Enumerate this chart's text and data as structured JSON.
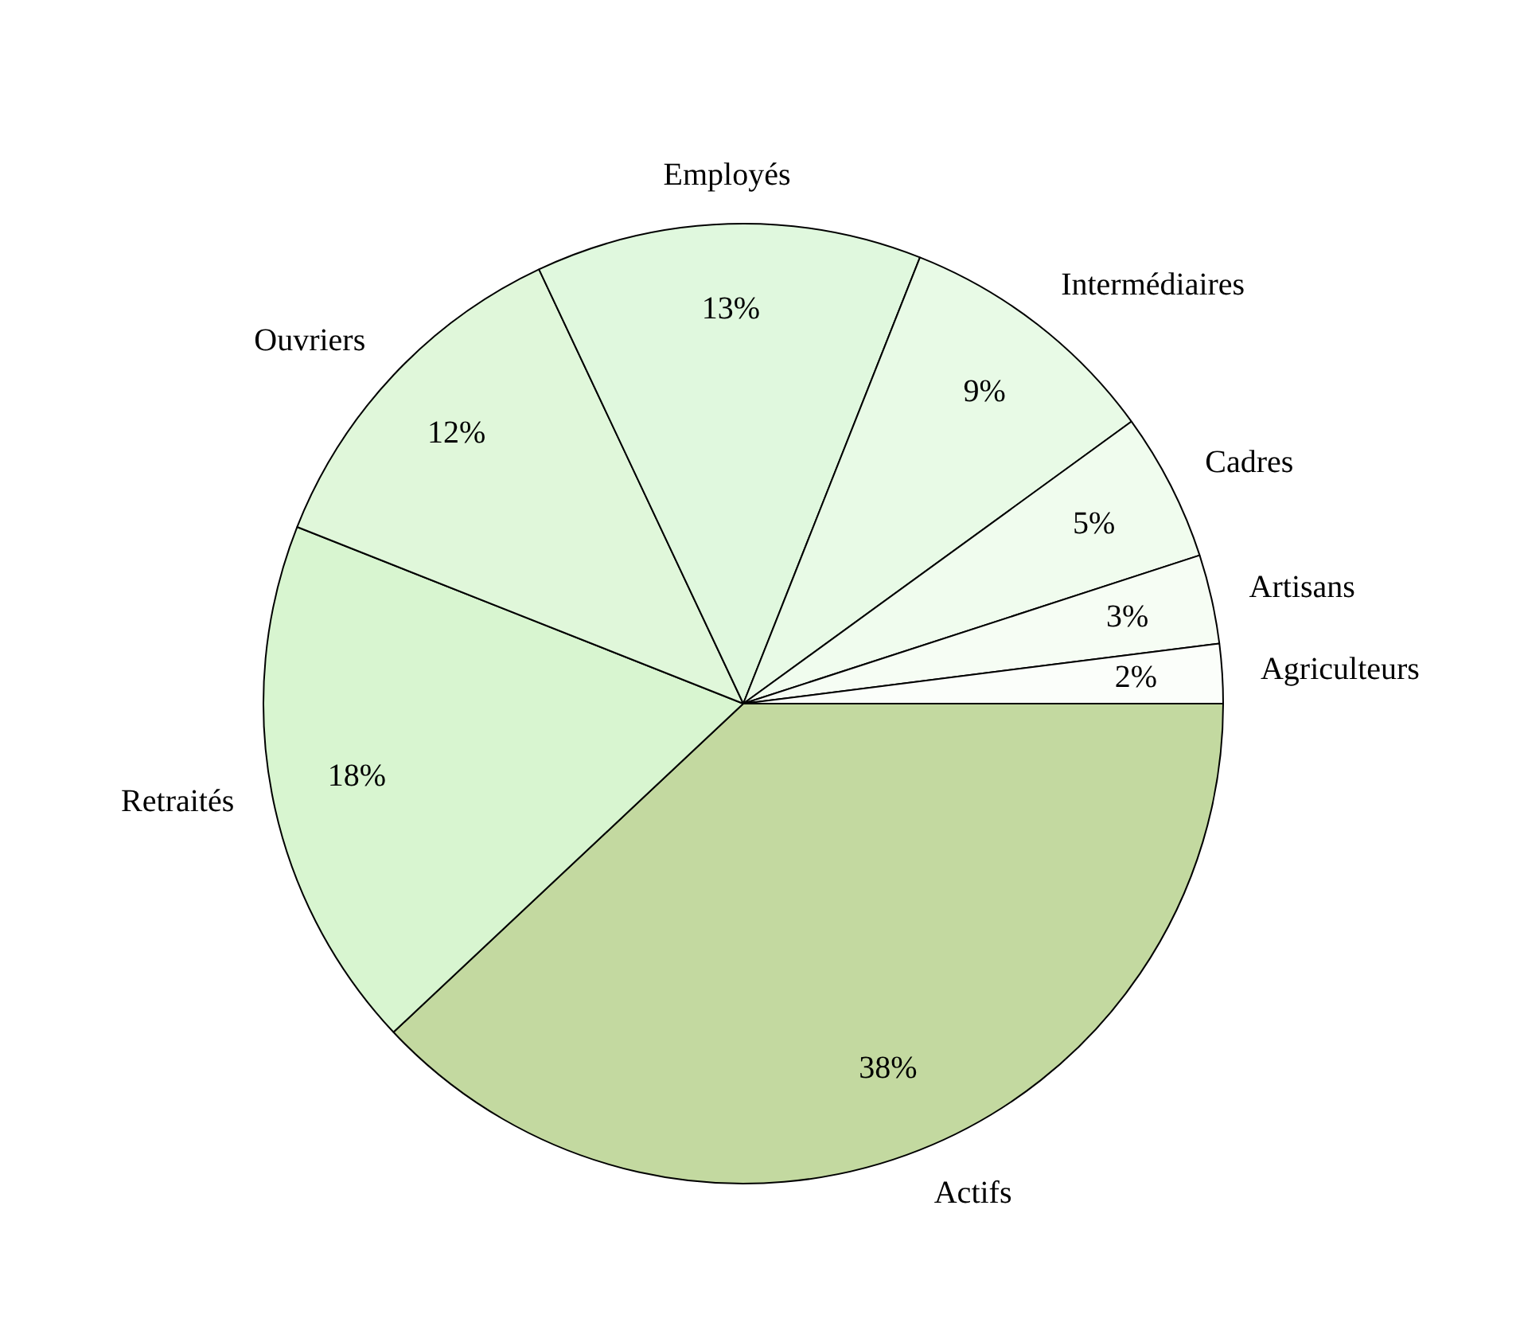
{
  "chart_data": {
    "type": "pie",
    "categories": [
      "Actifs",
      "Retraités",
      "Ouvriers",
      "Employés",
      "Intermédiaires",
      "Cadres",
      "Artisans",
      "Agriculteurs"
    ],
    "values": [
      38,
      18,
      12,
      13,
      9,
      5,
      3,
      2
    ],
    "value_labels": [
      "38%",
      "18%",
      "12%",
      "13%",
      "9%",
      "5%",
      "3%",
      "2%"
    ],
    "colors": [
      "#c3d9a0",
      "#d8f5d0",
      "#e0f7da",
      "#e0f8de",
      "#e8fae6",
      "#f0fcee",
      "#f6fdf4",
      "#fbfefa"
    ],
    "legend": false
  }
}
